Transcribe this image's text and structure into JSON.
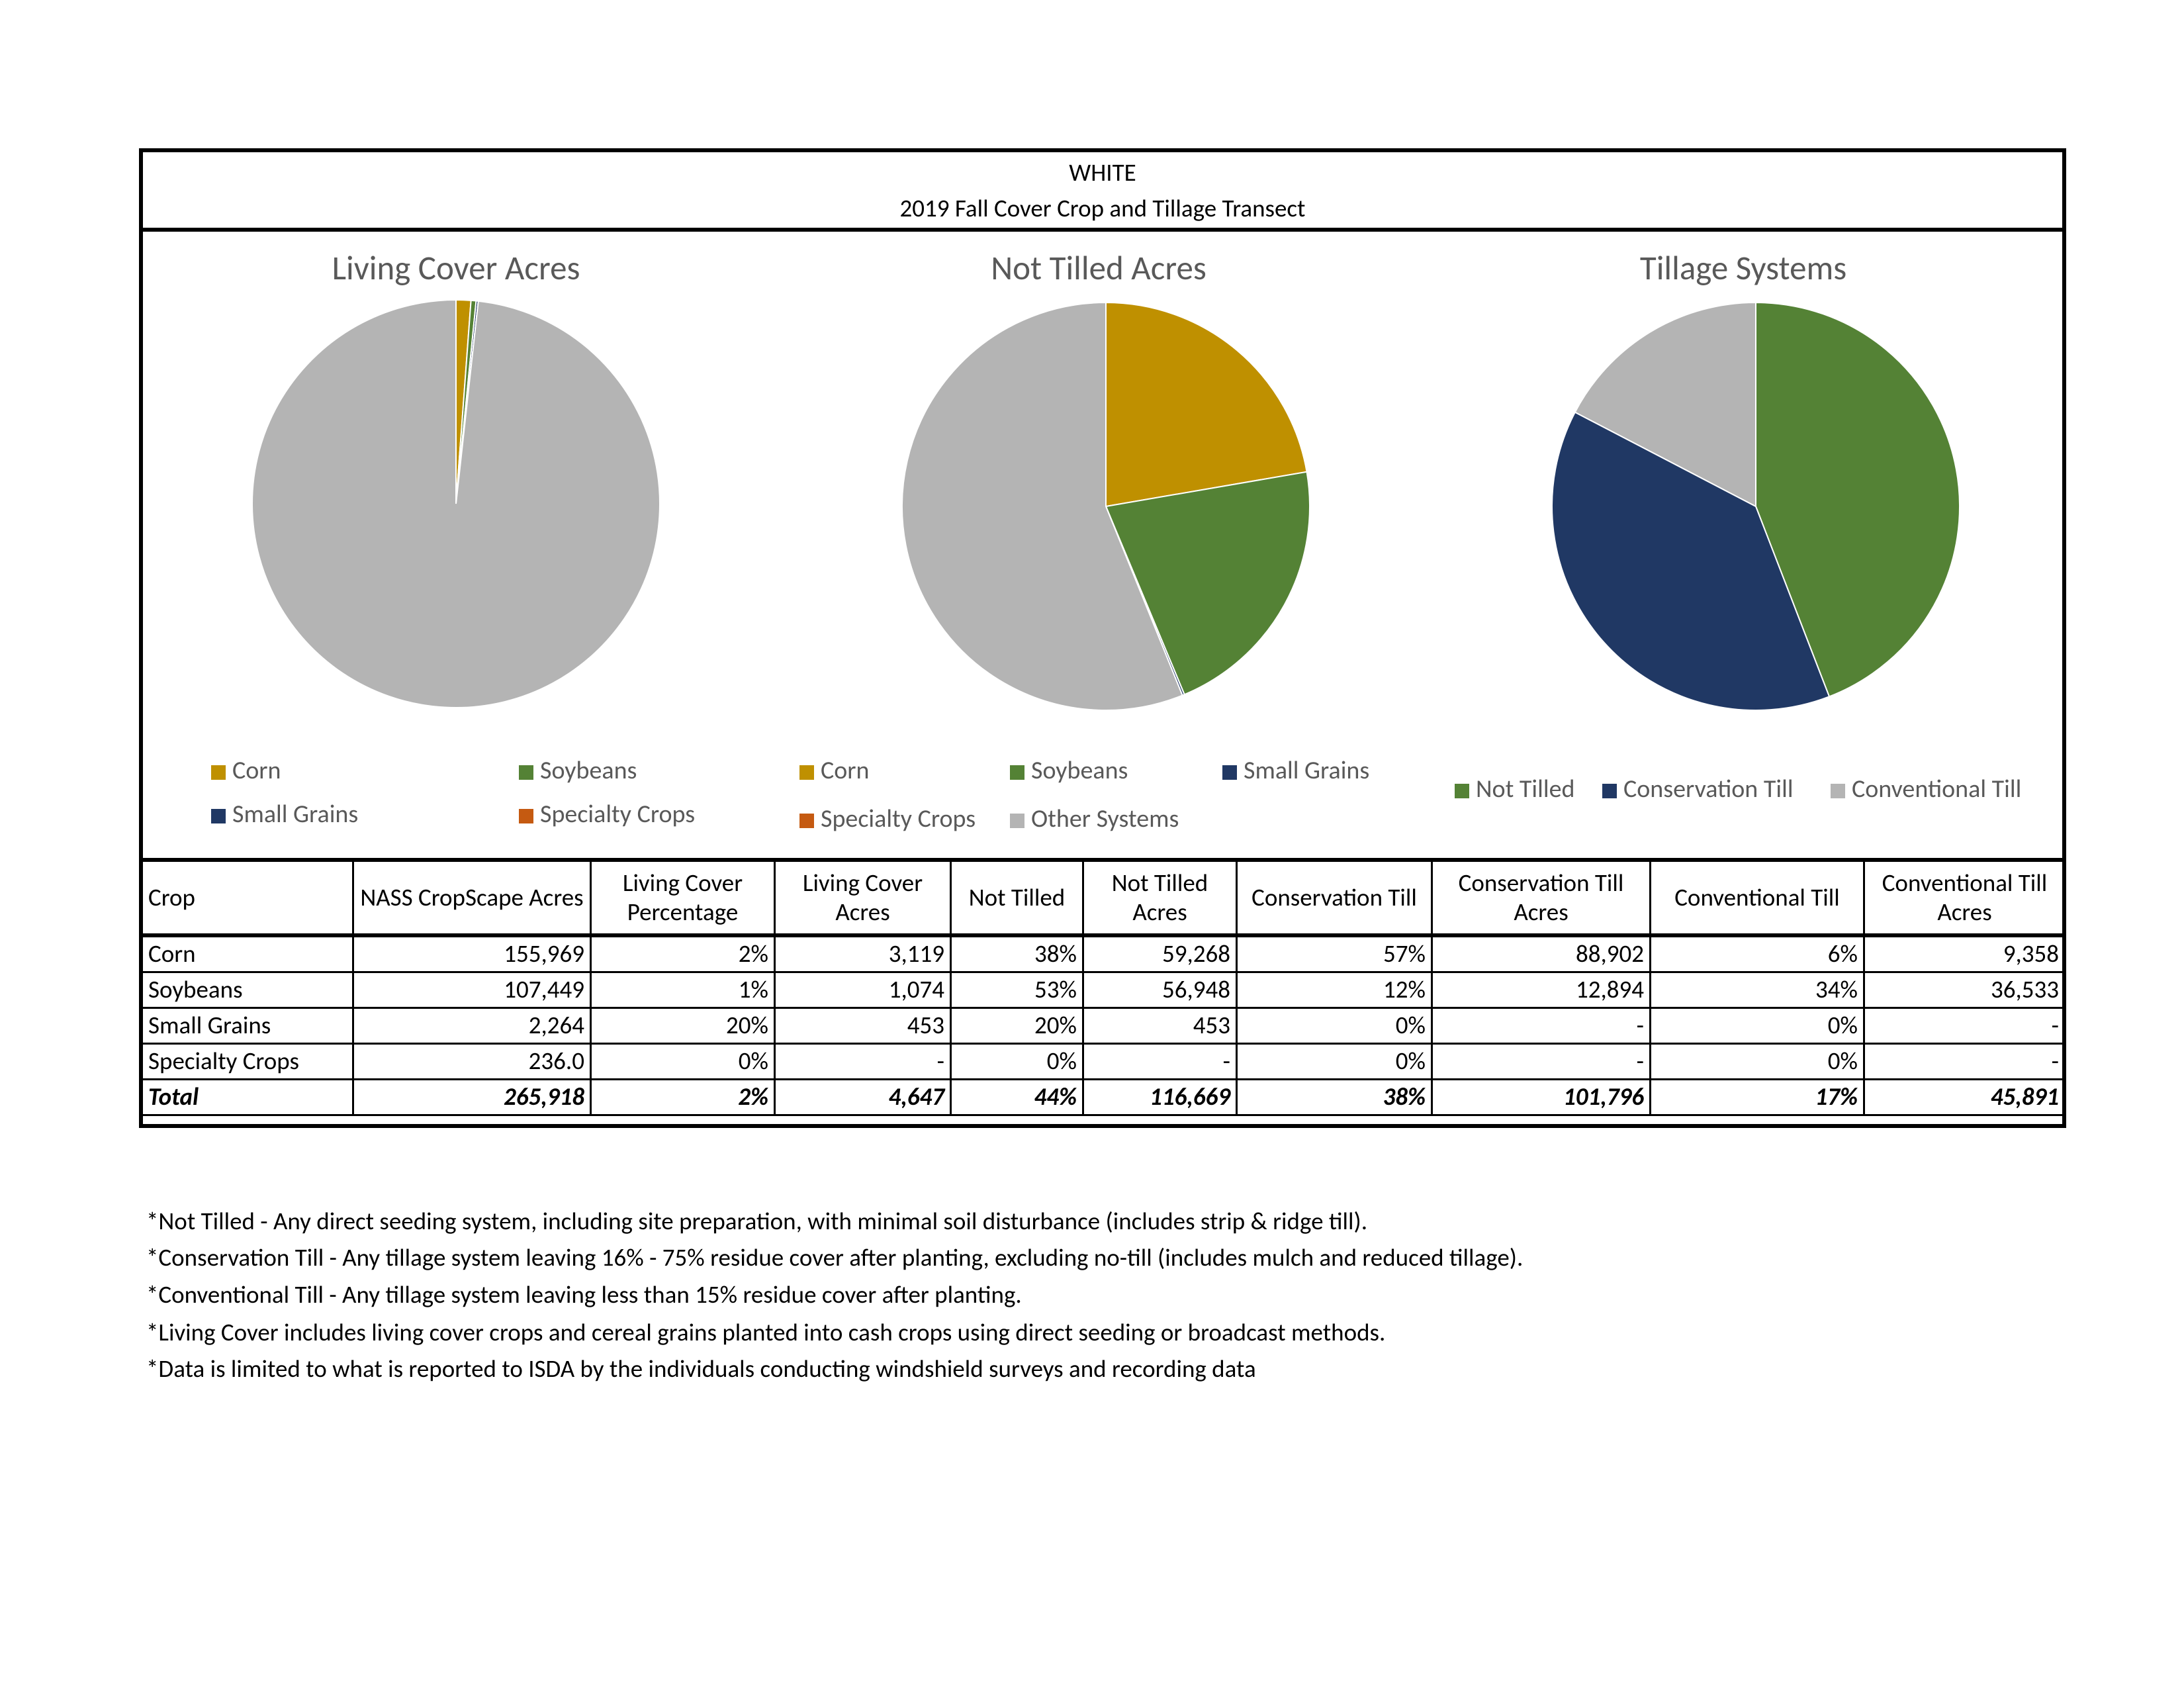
{
  "header": {
    "county": "WHITE",
    "title": "2019 Fall Cover Crop and Tillage Transect"
  },
  "chart_data": [
    {
      "type": "pie",
      "title": "Living Cover Acres",
      "categories": [
        "Corn",
        "Soybeans",
        "Small Grains",
        "Specialty Crops",
        null
      ],
      "values": [
        3119,
        1074,
        453,
        0,
        261271
      ],
      "colors": [
        "#bf9000",
        "#548235",
        "#203864",
        "#c55a11",
        "#b4b4b4"
      ]
    },
    {
      "type": "pie",
      "title": "Not Tilled Acres",
      "categories": [
        "Corn",
        "Soybeans",
        "Small Grains",
        "Specialty Crops",
        "Other Systems"
      ],
      "values": [
        59268,
        56948,
        453,
        0,
        149249
      ],
      "colors": [
        "#bf9000",
        "#548235",
        "#203864",
        "#c55a11",
        "#b4b4b4"
      ]
    },
    {
      "type": "pie",
      "title": "Tillage Systems",
      "categories": [
        "Not Tilled",
        "Conservation Till",
        "Conventional Till"
      ],
      "values": [
        116669,
        101796,
        45891
      ],
      "colors": [
        "#548235",
        "#203864",
        "#b4b4b4"
      ]
    }
  ],
  "table": {
    "header": [
      "Crop",
      "NASS CropScape Acres",
      "Living Cover Percentage",
      "Living Cover Acres",
      "Not Tilled",
      "Not Tilled Acres",
      "Conservation Till",
      "Conservation Till Acres",
      "Conventional Till",
      "Conventional Till Acres"
    ],
    "rows": [
      [
        "Corn",
        "155,969",
        "2%",
        "3,119",
        "38%",
        "59,268",
        "57%",
        "88,902",
        "6%",
        "9,358"
      ],
      [
        "Soybeans",
        "107,449",
        "1%",
        "1,074",
        "53%",
        "56,948",
        "12%",
        "12,894",
        "34%",
        "36,533"
      ],
      [
        "Small Grains",
        "2,264",
        "20%",
        "453",
        "20%",
        "453",
        "0%",
        "-",
        "0%",
        "-"
      ],
      [
        "Specialty Crops",
        "236.0",
        "0%",
        "-",
        "0%",
        "-",
        "0%",
        "-",
        "0%",
        "-"
      ],
      [
        "Total",
        "265,918",
        "2%",
        "4,647",
        "44%",
        "116,669",
        "38%",
        "101,796",
        "17%",
        "45,891"
      ]
    ]
  },
  "notes": [
    "*Not Tilled - Any direct seeding system, including site preparation, with minimal soil disturbance (includes strip & ridge till).",
    "*Conservation Till - Any tillage system leaving 16% - 75% residue cover after planting, excluding no-till (includes mulch and reduced tillage).",
    "*Conventional Till - Any tillage system leaving less than 15% residue cover after planting.",
    "*Living Cover includes living cover crops and cereal grains planted into cash crops using direct seeding or broadcast methods.",
    "*Data is limited to what is reported to ISDA by the individuals conducting windshield surveys and recording data"
  ]
}
